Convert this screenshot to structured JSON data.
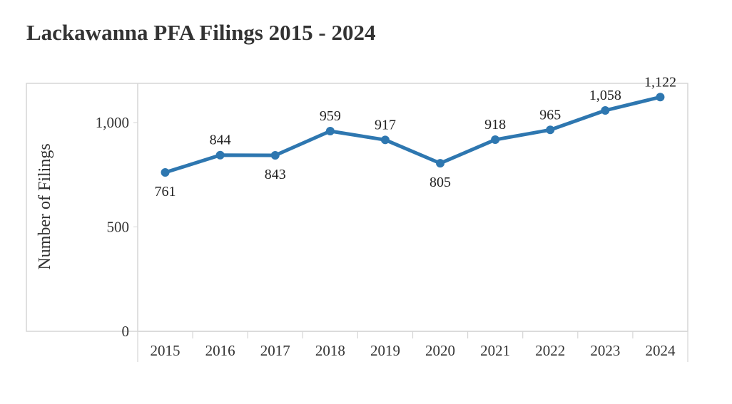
{
  "page": {
    "title": "Lackawanna PFA Filings 2015 - 2024"
  },
  "chart_data": {
    "type": "line",
    "title": "Lackawanna PFA Filings 2015 - 2024",
    "xlabel": "",
    "ylabel": "Number of Filings",
    "categories": [
      "2015",
      "2016",
      "2017",
      "2018",
      "2019",
      "2020",
      "2021",
      "2022",
      "2023",
      "2024"
    ],
    "series": [
      {
        "values": [
          761,
          844,
          843,
          959,
          917,
          805,
          918,
          965,
          1058,
          1122
        ]
      }
    ],
    "data_labels": [
      "761",
      "844",
      "843",
      "959",
      "917",
      "805",
      "918",
      "965",
      "1,058",
      "1,122"
    ],
    "yticks": [
      0,
      500,
      1000
    ],
    "ytick_labels": [
      "0",
      "500",
      "1,000"
    ],
    "ylim": [
      0,
      1190
    ],
    "grid": false,
    "legend": "none",
    "colors": {
      "line": "#2e77b0",
      "text": "#333333",
      "frame": "#d6d6d6",
      "label": "#222222"
    }
  }
}
